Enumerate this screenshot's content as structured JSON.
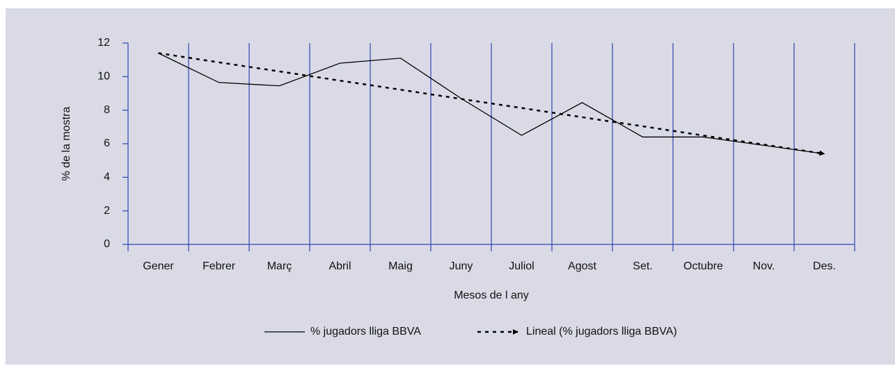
{
  "chart_data": {
    "type": "line",
    "x_label": "Mesos de l any",
    "y_label": "% de la mostra",
    "categories": [
      "Gener",
      "Febrer",
      "Març",
      "Abril",
      "Maig",
      "Juny",
      "Juliol",
      "Agost",
      "Set.",
      "Octubre",
      "Nov.",
      "Des."
    ],
    "series": [
      {
        "name": "% jugadors lliga BBVA",
        "color": "#000000",
        "dash": "solid",
        "values": [
          11.4,
          9.65,
          9.45,
          10.8,
          11.1,
          8.7,
          6.5,
          8.45,
          6.4,
          6.4,
          5.9,
          5.4
        ]
      },
      {
        "name": "Lineal (% jugadors lliga BBVA)",
        "color": "#000000",
        "dash": "dashed",
        "arrow": true,
        "values": [
          11.4,
          10.85,
          10.31,
          9.76,
          9.22,
          8.67,
          8.13,
          7.58,
          7.04,
          6.49,
          5.95,
          5.4
        ]
      }
    ],
    "ylim": [
      0,
      12
    ],
    "yticks": [
      0,
      2,
      4,
      6,
      8,
      10,
      12
    ],
    "axis_color": "#2e45b0",
    "background": "#d9dae6",
    "vertical_grid": true,
    "legend": "bottom"
  }
}
